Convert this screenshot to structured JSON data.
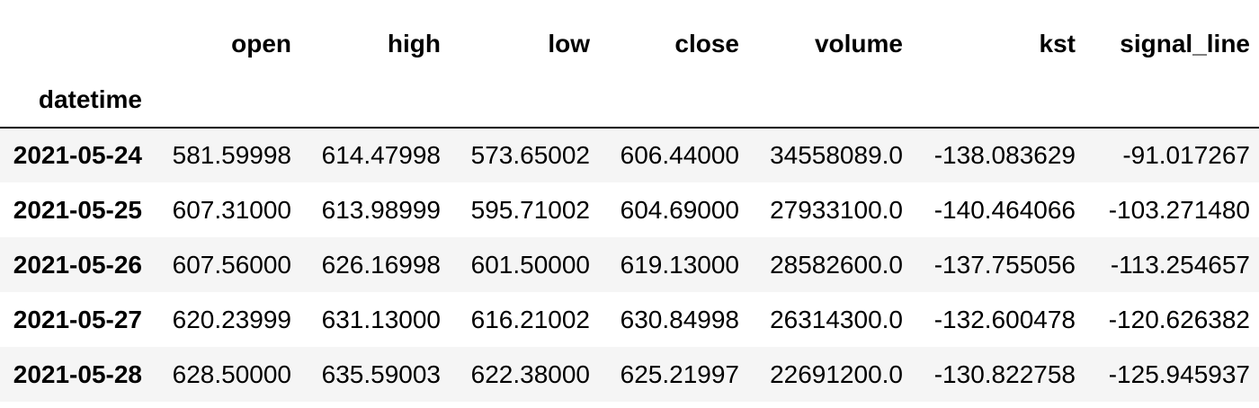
{
  "table": {
    "columns": [
      "open",
      "high",
      "low",
      "close",
      "volume",
      "kst",
      "signal_line"
    ],
    "index_name": "datetime",
    "rows": [
      {
        "index": "2021-05-24",
        "values": [
          "581.59998",
          "614.47998",
          "573.65002",
          "606.44000",
          "34558089.0",
          "-138.083629",
          "-91.017267"
        ]
      },
      {
        "index": "2021-05-25",
        "values": [
          "607.31000",
          "613.98999",
          "595.71002",
          "604.69000",
          "27933100.0",
          "-140.464066",
          "-103.271480"
        ]
      },
      {
        "index": "2021-05-26",
        "values": [
          "607.56000",
          "626.16998",
          "601.50000",
          "619.13000",
          "28582600.0",
          "-137.755056",
          "-113.254657"
        ]
      },
      {
        "index": "2021-05-27",
        "values": [
          "620.23999",
          "631.13000",
          "616.21002",
          "630.84998",
          "26314300.0",
          "-132.600478",
          "-120.626382"
        ]
      },
      {
        "index": "2021-05-28",
        "values": [
          "628.50000",
          "635.59003",
          "622.38000",
          "625.21997",
          "22691200.0",
          "-130.822758",
          "-125.945937"
        ]
      }
    ]
  }
}
